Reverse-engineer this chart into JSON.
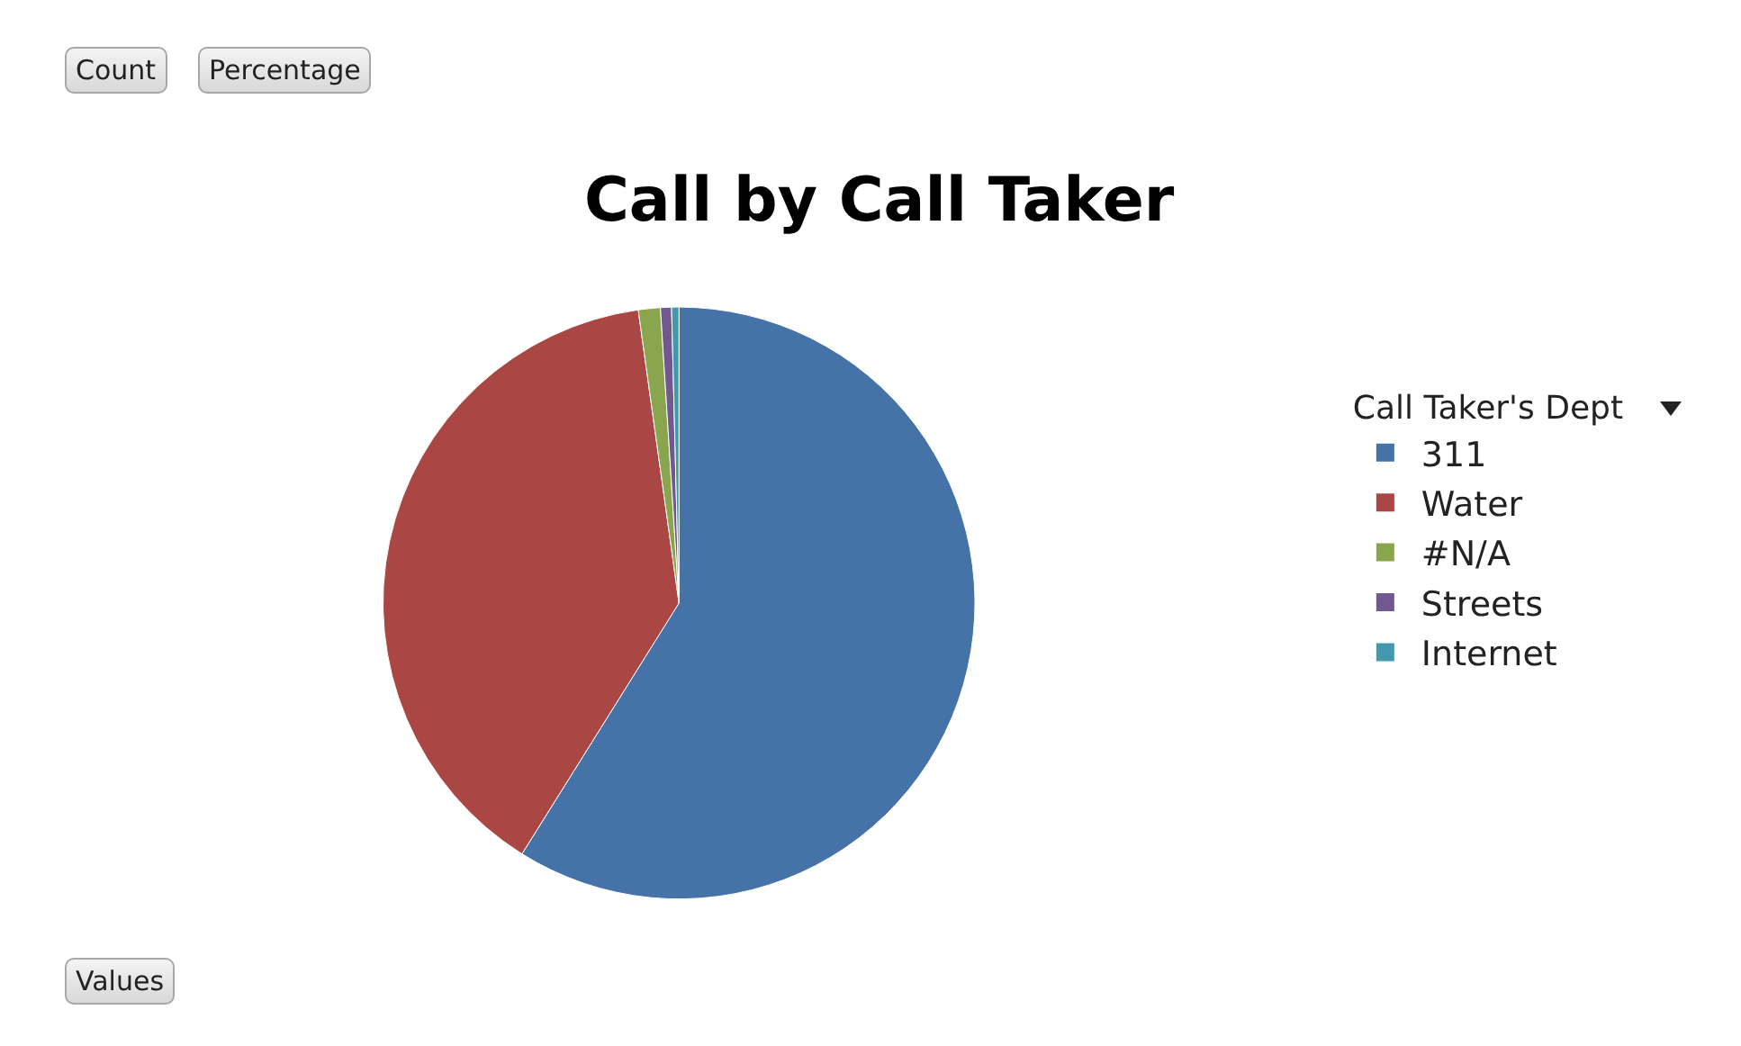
{
  "chart_data": {
    "type": "pie",
    "title": "Call by Call Taker",
    "legend_title": "Call Taker's Dept",
    "legend": "right",
    "categories": [
      "311",
      "Water",
      "#N/A",
      "Streets",
      "Internet"
    ],
    "values": [
      58.9,
      38.9,
      1.2,
      0.6,
      0.4
    ],
    "colors": [
      "#4572a7",
      "#aa4643",
      "#89a54e",
      "#71588f",
      "#4198af"
    ],
    "annotations": [
      "Count",
      "Percentage",
      "Values"
    ]
  }
}
